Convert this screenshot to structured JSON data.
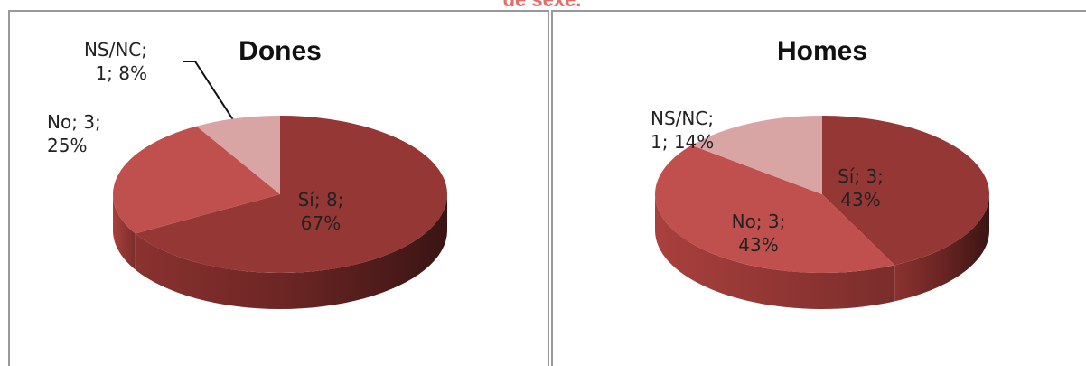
{
  "title": "de sexe.",
  "chart_data": [
    {
      "type": "pie3d",
      "title": "Dones",
      "categories": [
        "Sí",
        "No",
        "NS/NC"
      ],
      "values": [
        8,
        3,
        1
      ],
      "value_labels": [
        "Sí; 8; 67%",
        "No; 3; 25%",
        "NS/NC; 1; 8%"
      ],
      "colors": [
        "#953735",
        "#c0504d",
        "#d9a5a4"
      ]
    },
    {
      "type": "pie3d",
      "title": "Homes",
      "categories": [
        "Sí",
        "No",
        "NS/NC"
      ],
      "values": [
        3,
        3,
        1
      ],
      "value_labels": [
        "Sí; 3; 43%",
        "No; 3; 43%",
        "NS/NC; 1; 14%"
      ],
      "colors": [
        "#953735",
        "#c0504d",
        "#d9a5a4"
      ]
    }
  ]
}
